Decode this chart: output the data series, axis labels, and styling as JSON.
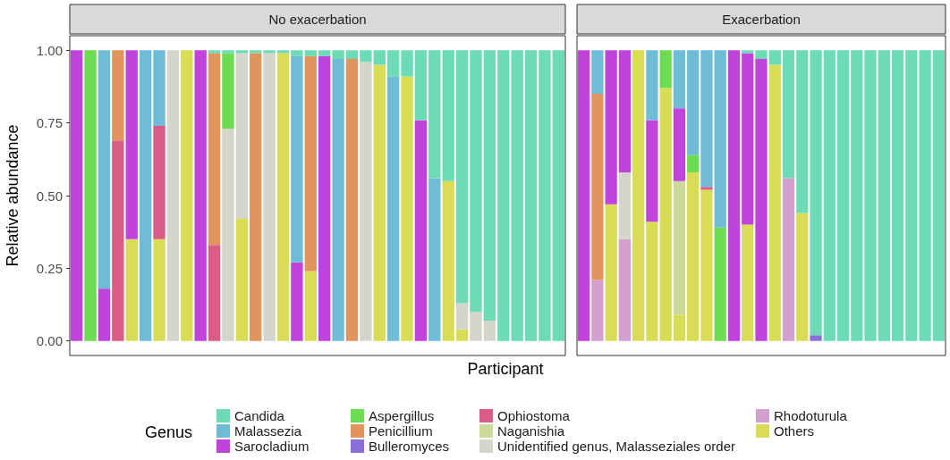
{
  "chart_data": [
    {
      "type": "bar",
      "title": "No exacerbation",
      "xlabel": "Participant",
      "ylabel": "Relative abundance",
      "stacked": true,
      "legend": "bottom",
      "grid": false,
      "tick_labels": "y",
      "ylim": [
        -0.05,
        1.05
      ],
      "yticks": [
        {
          "value": 0,
          "label": "0.00"
        },
        {
          "value": 0.25,
          "label": "0.25"
        },
        {
          "value": 0.5,
          "label": "0.50"
        },
        {
          "value": 0.75,
          "label": "0.75"
        },
        {
          "value": 1,
          "label": "1.00"
        }
      ],
      "categories": [
        null,
        null,
        null,
        null,
        null,
        null,
        null,
        null,
        null,
        null,
        null,
        null,
        null,
        null,
        null,
        null,
        null,
        null,
        null,
        null,
        null,
        null,
        null,
        null,
        null,
        null,
        null,
        null,
        null,
        null,
        null,
        null,
        null,
        null,
        null,
        null
      ],
      "series": [
        {
          "name": "Others",
          "color": "#d9dd55",
          "values": [
            null,
            null,
            null,
            null,
            0.35,
            null,
            0.35,
            null,
            1,
            null,
            null,
            null,
            0.42,
            null,
            null,
            0.99,
            null,
            0.24,
            null,
            null,
            null,
            null,
            0.95,
            null,
            0.91,
            null,
            null,
            0.55,
            0.04,
            null,
            null,
            null,
            null,
            null,
            null,
            null
          ]
        },
        {
          "name": "Unidentified genus, Malasseziales order",
          "color": "#d5d5cc",
          "values": [
            null,
            null,
            null,
            null,
            null,
            null,
            null,
            1,
            null,
            null,
            null,
            0.73,
            0.57,
            null,
            0.99,
            null,
            null,
            null,
            null,
            null,
            null,
            0.96,
            null,
            null,
            null,
            null,
            null,
            null,
            0.09,
            0.1,
            0.07,
            null,
            null,
            null,
            null,
            null
          ]
        },
        {
          "name": "Ophiostoma",
          "color": "#db5c85",
          "values": [
            null,
            null,
            null,
            0.69,
            null,
            null,
            0.39,
            null,
            null,
            null,
            0.33,
            null,
            null,
            null,
            null,
            null,
            null,
            null,
            null,
            null,
            null,
            null,
            null,
            null,
            null,
            null,
            null,
            null,
            null,
            null,
            null,
            null,
            null,
            null,
            null,
            null
          ]
        },
        {
          "name": "Penicillium",
          "color": "#e0955c",
          "values": [
            null,
            null,
            null,
            0.31,
            null,
            null,
            null,
            null,
            null,
            null,
            0.66,
            null,
            null,
            0.99,
            null,
            null,
            null,
            0.74,
            null,
            null,
            0.97,
            null,
            null,
            null,
            null,
            null,
            null,
            null,
            null,
            null,
            null,
            null,
            null,
            null,
            null,
            null
          ]
        },
        {
          "name": "Aspergillus",
          "color": "#6ddc53",
          "values": [
            null,
            1,
            null,
            null,
            null,
            null,
            null,
            null,
            null,
            null,
            null,
            0.26,
            null,
            null,
            null,
            null,
            null,
            null,
            null,
            null,
            null,
            null,
            null,
            null,
            null,
            null,
            null,
            null,
            null,
            null,
            null,
            null,
            null,
            null,
            null,
            null
          ]
        },
        {
          "name": "Sarocladium",
          "color": "#c044dc",
          "values": [
            1,
            null,
            0.18,
            null,
            0.65,
            null,
            null,
            null,
            null,
            1,
            null,
            null,
            null,
            null,
            null,
            null,
            0.27,
            null,
            0.98,
            null,
            null,
            null,
            null,
            null,
            null,
            0.76,
            null,
            null,
            null,
            null,
            null,
            null,
            null,
            null,
            null,
            null
          ]
        },
        {
          "name": "Malassezia",
          "color": "#6fbcd6",
          "values": [
            null,
            null,
            0.82,
            null,
            null,
            1,
            0.26,
            null,
            null,
            null,
            null,
            null,
            null,
            null,
            null,
            null,
            0.71,
            null,
            null,
            0.97,
            null,
            null,
            null,
            0.91,
            null,
            null,
            0.56,
            null,
            null,
            null,
            null,
            null,
            null,
            null,
            null,
            null
          ]
        },
        {
          "name": "Candida",
          "color": "#6ddcb4",
          "values": [
            null,
            null,
            null,
            null,
            null,
            null,
            null,
            null,
            null,
            null,
            0.01,
            0.01,
            0.01,
            0.01,
            0.01,
            0.01,
            0.02,
            0.02,
            0.02,
            0.03,
            0.03,
            0.04,
            0.05,
            0.09,
            0.09,
            0.24,
            0.44,
            0.45,
            0.87,
            0.9,
            0.93,
            1,
            1,
            1,
            1,
            1
          ]
        }
      ]
    },
    {
      "type": "bar",
      "title": "Exacerbation",
      "stacked": true,
      "legend": "bottom",
      "legend_title": "Genus",
      "grid": false,
      "tick_labels": false,
      "ylim": [
        -0.05,
        1.05
      ],
      "categories": [
        null,
        null,
        null,
        null,
        null,
        null,
        null,
        null,
        null,
        null,
        null,
        null,
        null,
        null,
        null,
        null,
        null,
        null,
        null,
        null,
        null,
        null,
        null,
        null,
        null,
        null,
        null
      ],
      "series": [
        {
          "name": "Others",
          "color": "#d9dd55",
          "values": [
            null,
            null,
            0.47,
            null,
            1,
            0.41,
            0.87,
            0.09,
            0.58,
            0.52,
            null,
            null,
            0.4,
            null,
            0.95,
            null,
            0.44,
            null,
            null,
            null,
            null,
            null,
            null,
            null,
            null,
            null,
            null
          ]
        },
        {
          "name": "Rhodoturula",
          "color": "#d39fcf",
          "values": [
            null,
            0.21,
            null,
            0.35,
            null,
            null,
            null,
            null,
            null,
            null,
            null,
            null,
            null,
            null,
            null,
            0.56,
            null,
            null,
            null,
            null,
            null,
            null,
            null,
            null,
            null,
            null,
            null
          ]
        },
        {
          "name": "Unidentified genus, Malasseziales order",
          "color": "#d5d5cc",
          "values": [
            null,
            null,
            null,
            0.23,
            null,
            null,
            null,
            null,
            null,
            null,
            null,
            null,
            null,
            null,
            null,
            null,
            null,
            null,
            null,
            null,
            null,
            null,
            null,
            null,
            null,
            null,
            null
          ]
        },
        {
          "name": "Naganishia",
          "color": "#ccdb9a",
          "values": [
            null,
            null,
            null,
            null,
            null,
            null,
            null,
            0.46,
            null,
            null,
            null,
            null,
            null,
            null,
            null,
            null,
            null,
            null,
            null,
            null,
            null,
            null,
            null,
            null,
            null,
            null,
            null
          ]
        },
        {
          "name": "Ophiostoma",
          "color": "#db5c85",
          "values": [
            null,
            null,
            null,
            null,
            null,
            null,
            null,
            null,
            null,
            0.01,
            null,
            null,
            null,
            null,
            null,
            null,
            null,
            null,
            null,
            null,
            null,
            null,
            null,
            null,
            null,
            null,
            null
          ]
        },
        {
          "name": "Bulleromyces",
          "color": "#8a6fd9",
          "values": [
            null,
            null,
            null,
            null,
            null,
            null,
            null,
            null,
            null,
            null,
            null,
            null,
            null,
            null,
            null,
            null,
            null,
            0.02,
            null,
            null,
            null,
            null,
            null,
            null,
            null,
            null,
            null
          ]
        },
        {
          "name": "Penicillium",
          "color": "#e0955c",
          "values": [
            null,
            0.64,
            null,
            null,
            null,
            null,
            null,
            null,
            null,
            null,
            null,
            null,
            null,
            null,
            null,
            null,
            null,
            null,
            null,
            null,
            null,
            null,
            null,
            null,
            null,
            null,
            null
          ]
        },
        {
          "name": "Aspergillus",
          "color": "#6ddc53",
          "values": [
            null,
            null,
            null,
            null,
            null,
            null,
            0.13,
            null,
            0.06,
            null,
            0.39,
            null,
            null,
            null,
            null,
            null,
            null,
            null,
            null,
            null,
            null,
            null,
            null,
            null,
            null,
            null,
            null
          ]
        },
        {
          "name": "Sarocladium",
          "color": "#c044dc",
          "values": [
            1,
            null,
            0.53,
            0.42,
            null,
            0.35,
            null,
            0.25,
            null,
            null,
            null,
            1,
            0.59,
            0.97,
            null,
            null,
            null,
            null,
            null,
            null,
            null,
            null,
            null,
            null,
            null,
            null,
            null
          ]
        },
        {
          "name": "Malassezia",
          "color": "#6fbcd6",
          "values": [
            null,
            0.15,
            null,
            null,
            null,
            0.24,
            null,
            0.2,
            0.36,
            0.47,
            0.61,
            null,
            null,
            null,
            null,
            null,
            null,
            null,
            null,
            null,
            null,
            null,
            null,
            null,
            null,
            null,
            null
          ]
        },
        {
          "name": "Candida",
          "color": "#6ddcb4",
          "values": [
            null,
            null,
            null,
            null,
            null,
            null,
            null,
            null,
            null,
            null,
            null,
            null,
            0.01,
            0.03,
            0.05,
            0.44,
            0.56,
            0.98,
            1,
            1,
            1,
            1,
            1,
            1,
            1,
            1,
            1
          ]
        }
      ]
    }
  ]
}
